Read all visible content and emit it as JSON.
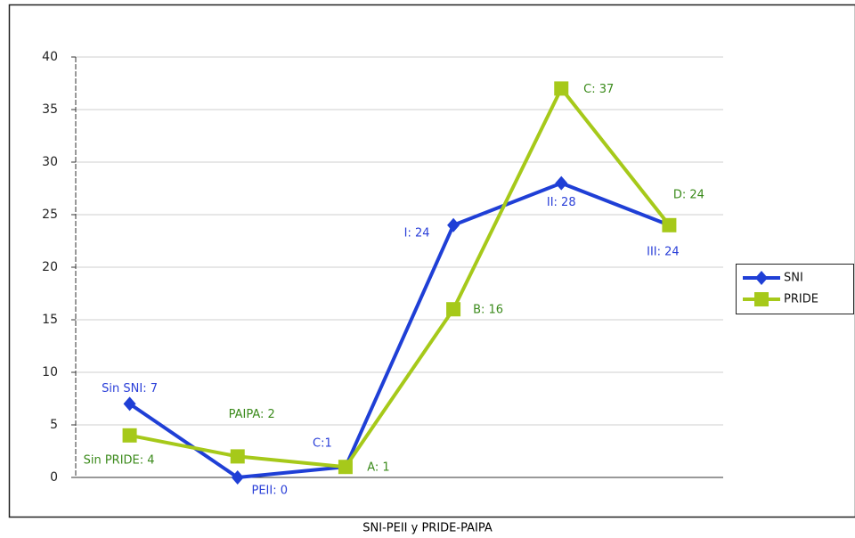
{
  "chart_data": {
    "type": "line",
    "title": "SNI-PEII y PRIDE-PAIPA",
    "categories": [
      null,
      null,
      null,
      null,
      null,
      null
    ],
    "series": [
      {
        "name": "SNI",
        "color": "#1f3fd6",
        "label_color": "#2a3fd8",
        "marker": "diamond",
        "values": [
          7,
          0,
          1,
          24,
          28,
          24
        ],
        "value_labels": [
          "Sin SNI: 7",
          "PEII: 0",
          "C:1",
          "I: 24",
          "II: 28",
          "III: 24"
        ]
      },
      {
        "name": "PRIDE",
        "color": "#a6c91a",
        "label_color": "#3a8a1a",
        "marker": "square",
        "values": [
          4,
          2,
          1,
          16,
          37,
          24
        ],
        "value_labels": [
          "Sin PRIDE: 4",
          "PAIPA: 2",
          "A: 1",
          "B: 16",
          "C: 37",
          "D: 24"
        ]
      }
    ],
    "ylim": [
      0,
      40
    ],
    "yticks": [
      0,
      5,
      10,
      15,
      20,
      25,
      30,
      35,
      40
    ],
    "grid": true,
    "legend": "right"
  }
}
